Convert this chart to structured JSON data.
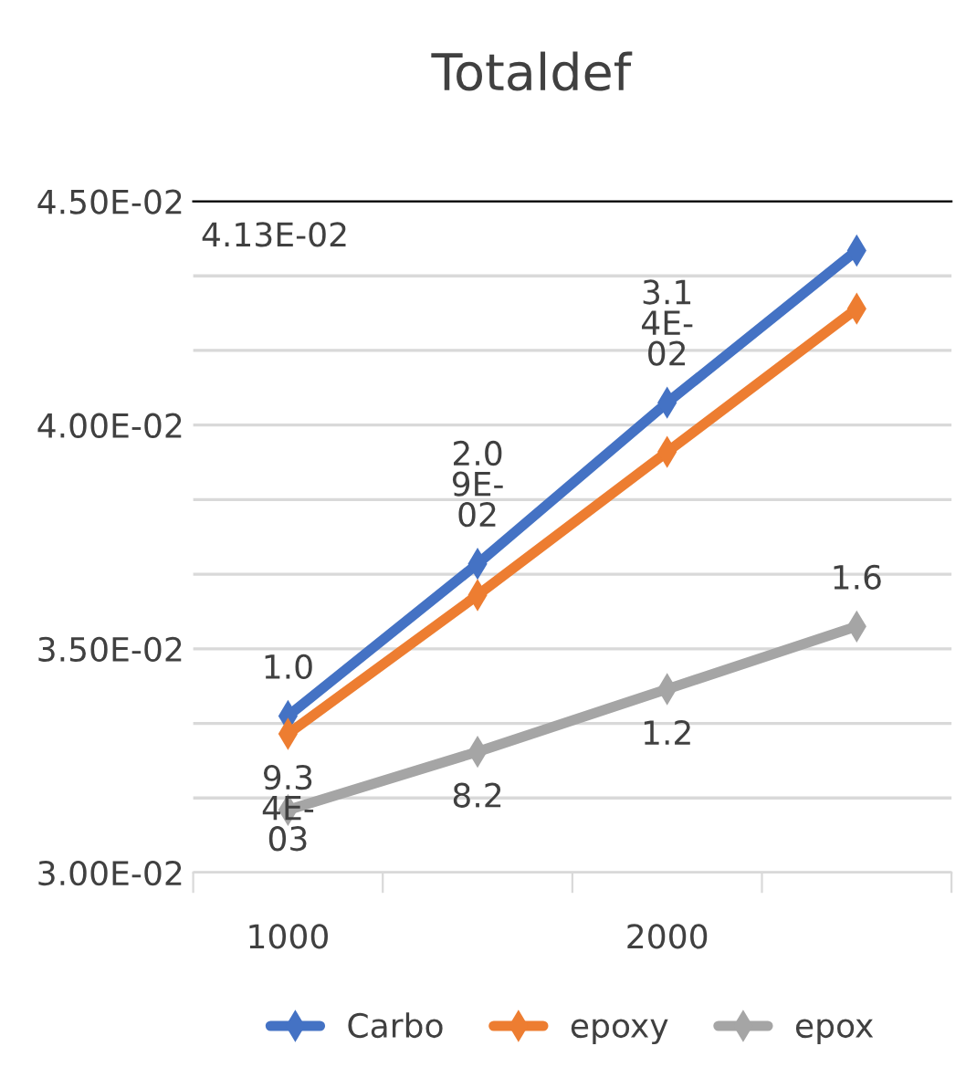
{
  "chart_data": {
    "type": "line",
    "title": "Totaldef",
    "x": [
      1000,
      1500,
      2000,
      2500
    ],
    "series": [
      {
        "name": "Carbo",
        "color": "#4472c4",
        "values": [
          0.0335,
          0.0369,
          0.0405,
          0.0439
        ]
      },
      {
        "name": "epoxy",
        "color": "#ed7d31",
        "values": [
          0.0331,
          0.0362,
          0.0394,
          0.0426
        ]
      },
      {
        "name": "epox",
        "color": "#a5a5a5",
        "values": [
          0.0314,
          0.0327,
          0.0341,
          0.0355
        ]
      }
    ],
    "xlim": [
      750,
      2750
    ],
    "xticks": [
      {
        "value": 750,
        "label": null
      },
      1000,
      {
        "value": 1250,
        "label": null
      },
      {
        "value": 1750,
        "label": null
      },
      2000,
      {
        "value": 2250,
        "label": null
      },
      {
        "value": 2750,
        "label": null
      }
    ],
    "ylim": [
      0.03,
      0.045
    ],
    "yticks": [
      {
        "value": 0.03,
        "label": "3.00E-02"
      },
      {
        "value": 0.031667,
        "label": null
      },
      {
        "value": 0.033333,
        "label": null
      },
      {
        "value": 0.035,
        "label": "3.50E-02"
      },
      {
        "value": 0.036667,
        "label": null
      },
      {
        "value": 0.038333,
        "label": null
      },
      {
        "value": 0.04,
        "label": "4.00E-02"
      },
      {
        "value": 0.041667,
        "label": null
      },
      {
        "value": 0.043333,
        "label": null
      },
      {
        "value": 0.045,
        "label": "4.50E-02"
      }
    ],
    "annotations": [
      "4.13E-02",
      {
        "text": "1.0",
        "x": 1000,
        "y": 0.0335
      },
      {
        "text": "9.3\n4E-\n03",
        "x": 1000,
        "y": 0.0331
      },
      {
        "text": "2.0\n9E-\n02",
        "x": 1500,
        "y": 0.0369
      },
      {
        "text": "3.1\n4E-\n02",
        "x": 2000,
        "y": 0.0405
      },
      {
        "text": "8.2",
        "x": 1500,
        "y": 0.0327
      },
      {
        "text": "1.2",
        "x": 2000,
        "y": 0.0341
      },
      {
        "text": "1.6",
        "x": 2500,
        "y": 0.0355
      }
    ],
    "grid": "y",
    "legend": "bottom",
    "marker": "diamond",
    "line_style": "solid"
  }
}
